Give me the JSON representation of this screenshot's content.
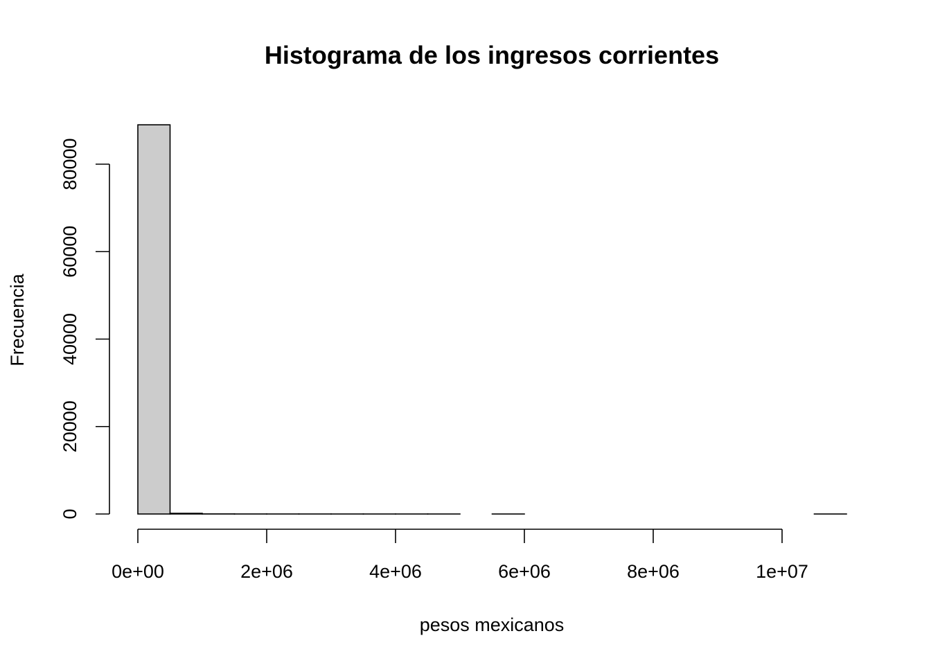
{
  "chart_data": {
    "type": "bar",
    "subtype": "histogram",
    "title": "Histograma de los ingresos corrientes",
    "xlabel": "pesos mexicanos",
    "ylabel": "Frecuencia",
    "xlim": [
      0,
      11000000
    ],
    "ylim": [
      0,
      90000
    ],
    "grid": false,
    "bar_fill": "#cccccc",
    "bar_edge": "#000000",
    "bins": [
      {
        "start": 0,
        "end": 500000,
        "count": 89000
      },
      {
        "start": 500000,
        "end": 1000000,
        "count": 150
      },
      {
        "start": 1000000,
        "end": 1500000,
        "count": 20
      },
      {
        "start": 1500000,
        "end": 2000000,
        "count": 8
      },
      {
        "start": 2000000,
        "end": 2500000,
        "count": 4
      },
      {
        "start": 2500000,
        "end": 3000000,
        "count": 3
      },
      {
        "start": 3000000,
        "end": 3500000,
        "count": 2
      },
      {
        "start": 3500000,
        "end": 4000000,
        "count": 1
      },
      {
        "start": 4000000,
        "end": 4500000,
        "count": 1
      },
      {
        "start": 4500000,
        "end": 5000000,
        "count": 1
      },
      {
        "start": 5000000,
        "end": 5500000,
        "count": 0
      },
      {
        "start": 5500000,
        "end": 6000000,
        "count": 1
      },
      {
        "start": 6000000,
        "end": 6500000,
        "count": 0
      },
      {
        "start": 6500000,
        "end": 7000000,
        "count": 0
      },
      {
        "start": 7000000,
        "end": 7500000,
        "count": 0
      },
      {
        "start": 7500000,
        "end": 8000000,
        "count": 0
      },
      {
        "start": 8000000,
        "end": 8500000,
        "count": 0
      },
      {
        "start": 8500000,
        "end": 9000000,
        "count": 0
      },
      {
        "start": 9000000,
        "end": 9500000,
        "count": 0
      },
      {
        "start": 9500000,
        "end": 10000000,
        "count": 0
      },
      {
        "start": 10000000,
        "end": 10500000,
        "count": 0
      },
      {
        "start": 10500000,
        "end": 11000000,
        "count": 1
      }
    ],
    "x_ticks": [
      {
        "value": 0,
        "label": "0e+00"
      },
      {
        "value": 2000000,
        "label": "2e+06"
      },
      {
        "value": 4000000,
        "label": "4e+06"
      },
      {
        "value": 6000000,
        "label": "6e+06"
      },
      {
        "value": 8000000,
        "label": "8e+06"
      },
      {
        "value": 10000000,
        "label": "1e+07"
      }
    ],
    "y_ticks": [
      {
        "value": 0,
        "label": "0"
      },
      {
        "value": 20000,
        "label": "20000"
      },
      {
        "value": 40000,
        "label": "40000"
      },
      {
        "value": 60000,
        "label": "60000"
      },
      {
        "value": 80000,
        "label": "80000"
      }
    ]
  }
}
